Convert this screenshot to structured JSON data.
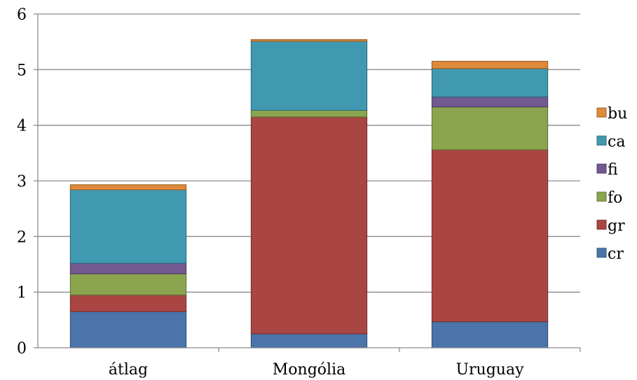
{
  "chart_data": {
    "type": "bar",
    "stacked": true,
    "title": "",
    "xlabel": "",
    "ylabel": "",
    "categories": [
      "átlag",
      "Mongólia",
      "Uruguay"
    ],
    "ylim": [
      0,
      6
    ],
    "yticks": [
      0,
      1,
      2,
      3,
      4,
      5,
      6
    ],
    "grid": true,
    "legend_position": "right",
    "series": [
      {
        "name": "cr",
        "color": "#4a74aa",
        "values": [
          0.65,
          0.25,
          0.47
        ]
      },
      {
        "name": "gr",
        "color": "#a94643",
        "values": [
          0.3,
          3.9,
          3.09
        ]
      },
      {
        "name": "fo",
        "color": "#8aa54e",
        "values": [
          0.38,
          0.12,
          0.77
        ]
      },
      {
        "name": "fi",
        "color": "#72598f",
        "values": [
          0.19,
          0.0,
          0.18
        ]
      },
      {
        "name": "ca",
        "color": "#4099b1",
        "values": [
          1.32,
          1.24,
          0.51
        ]
      },
      {
        "name": "bu",
        "color": "#df8a3b",
        "values": [
          0.09,
          0.03,
          0.13
        ]
      }
    ],
    "legend_order": [
      "bu",
      "ca",
      "fi",
      "fo",
      "gr",
      "cr"
    ]
  }
}
